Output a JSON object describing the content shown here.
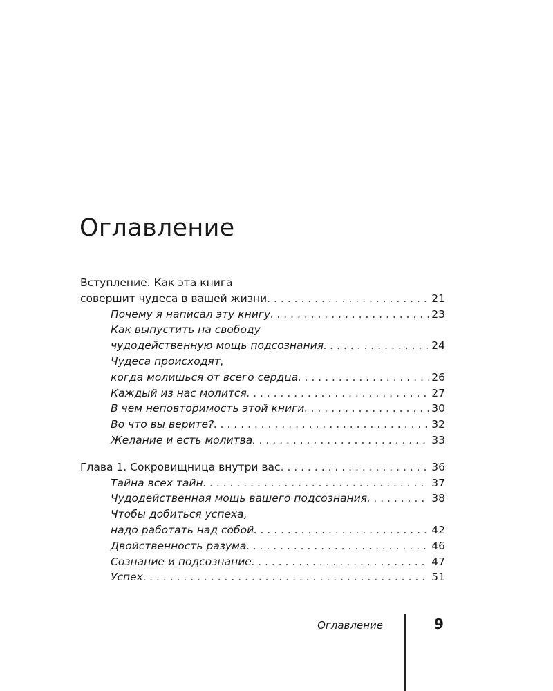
{
  "title": "Оглавление",
  "sections": [
    {
      "main": {
        "lines": [
          "Вступление. Как эта книга",
          "совершит чудеса в вашей жизни"
        ],
        "page": "21"
      },
      "items": [
        {
          "lines": [
            "Почему я написал эту книгу"
          ],
          "page": "23"
        },
        {
          "lines": [
            "Как выпустить на свободу",
            "чудодейственную мощь подсознания"
          ],
          "page": "24"
        },
        {
          "lines": [
            "Чудеса происходят,",
            "когда молишься от всего сердца"
          ],
          "page": "26"
        },
        {
          "lines": [
            "Каждый из нас молится"
          ],
          "page": "27"
        },
        {
          "lines": [
            "В чем неповторимость этой книги"
          ],
          "page": "30"
        },
        {
          "lines": [
            "Во что вы верите?"
          ],
          "page": "32"
        },
        {
          "lines": [
            "Желание и есть молитва"
          ],
          "page": "33"
        }
      ]
    },
    {
      "main": {
        "lines": [
          "Глава 1. Сокровищница внутри вас"
        ],
        "page": "36"
      },
      "items": [
        {
          "lines": [
            "Тайна всех тайн"
          ],
          "page": "37"
        },
        {
          "lines": [
            "Чудодейственная мощь вашего подсознания"
          ],
          "page": "38"
        },
        {
          "lines": [
            "Чтобы добиться успеха,",
            "надо работать над собой"
          ],
          "page": "42"
        },
        {
          "lines": [
            "Двойственность разума"
          ],
          "page": "46"
        },
        {
          "lines": [
            "Сознание и подсознание"
          ],
          "page": "47"
        },
        {
          "lines": [
            "Успех"
          ],
          "page": "51"
        }
      ]
    }
  ],
  "footer": {
    "running_title": "Оглавление",
    "page_number": "9"
  }
}
